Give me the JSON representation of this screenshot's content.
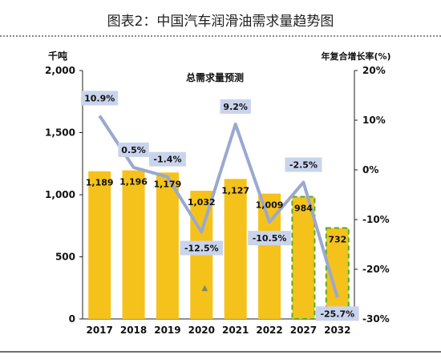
{
  "figure": {
    "title": "图表2：中国汽车润滑油需求量趋势图"
  },
  "chart_data": {
    "type": "bar",
    "title": "总需求量预测",
    "categories": [
      "2017",
      "2018",
      "2019",
      "2020",
      "2021",
      "2022",
      "2027",
      "2032"
    ],
    "ylabel_left": "千吨",
    "ylabel_right": "年复合增长率(%)",
    "ylim_left": [
      0,
      2000
    ],
    "ylim_right": [
      -30,
      20
    ],
    "left_ticks": [
      "2,000",
      "1,500",
      "1,000",
      "500",
      "0"
    ],
    "left_tick_values": [
      2000,
      1500,
      1000,
      500,
      0
    ],
    "right_ticks": [
      "20%",
      "10%",
      "0%",
      "-10%",
      "-20%",
      "-30%"
    ],
    "right_tick_values": [
      20,
      10,
      0,
      -10,
      -20,
      -30
    ],
    "series": [
      {
        "type": "bar",
        "values": [
          1189,
          1196,
          1179,
          1032,
          1127,
          1009,
          984,
          732
        ],
        "labels": [
          "1,189",
          "1,196",
          "1,179",
          "1,032",
          "1,127",
          "1,009",
          "984",
          "732"
        ],
        "forecast": [
          false,
          false,
          false,
          false,
          false,
          false,
          true,
          true
        ],
        "color": "#f5c21b",
        "forecast_border": "#4caf2f"
      },
      {
        "type": "line",
        "axis": "right",
        "values": [
          10.9,
          0.5,
          -1.4,
          -12.5,
          9.2,
          -10.5,
          -2.5,
          -25.7
        ],
        "labels": [
          "10.9%",
          "0.5%",
          "-1.4%",
          "-12.5%",
          "9.2%",
          "-10.5%",
          "-2.5%",
          "-25.7%"
        ],
        "color": "#99a9cf",
        "label_bg": "#c9d4ec"
      }
    ],
    "grid": false,
    "legend": "none",
    "annotations": [
      "▲"
    ]
  }
}
